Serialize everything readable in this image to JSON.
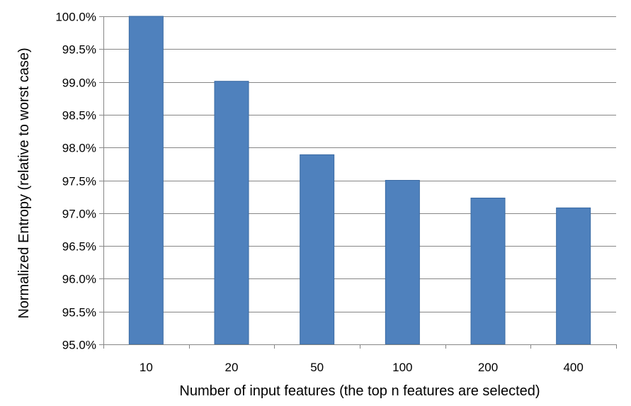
{
  "chart_data": {
    "type": "bar",
    "categories": [
      "10",
      "20",
      "50",
      "100",
      "200",
      "400"
    ],
    "values": [
      100.0,
      99.01,
      97.89,
      97.5,
      97.23,
      97.08
    ],
    "xlabel": "Number of input features (the top n features are selected)",
    "ylabel": "Normalized Entropy (relative to worst case)",
    "ylim": [
      95.0,
      100.0
    ],
    "yticks": [
      95.0,
      95.5,
      96.0,
      96.5,
      97.0,
      97.5,
      98.0,
      98.5,
      99.0,
      99.5,
      100.0
    ],
    "ytick_labels": [
      "95.0%",
      "95.5%",
      "96.0%",
      "96.5%",
      "97.0%",
      "97.5%",
      "98.0%",
      "98.5%",
      "99.0%",
      "99.5%",
      "100.0%"
    ],
    "grid": true,
    "bar_color": "#4f81bd",
    "bar_edge_color": "#3a6aa3",
    "grid_color": "#868686"
  }
}
